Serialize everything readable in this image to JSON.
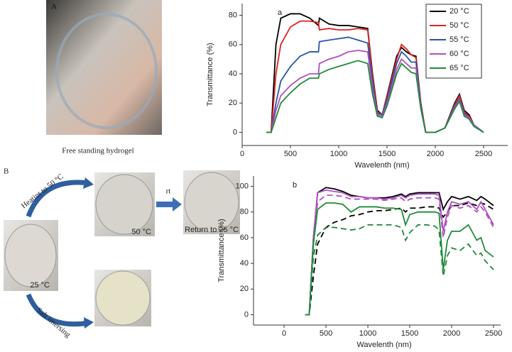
{
  "panels": {
    "a_letter": "A",
    "a_caption": "Free standing hydrogel",
    "b_letter": "B",
    "heat": "Heatint to 50 °C",
    "rt": "rt",
    "salt": "Salt imersing",
    "photo_50": "50 °C",
    "photo_return": "Return to 25 °C",
    "photo_25": "25 °C"
  },
  "chart_data": [
    {
      "type": "line",
      "panel_label": "a",
      "x_label": "Wavelenth (nm)",
      "y_label": "Transmittance (%)",
      "xlim": [
        0,
        2750
      ],
      "xticks": [
        0,
        500,
        1000,
        1500,
        2000,
        2500
      ],
      "ylim": [
        -9,
        88
      ],
      "yticks": [
        0,
        20,
        40,
        60,
        80
      ],
      "legend": "upper right",
      "x": [
        250,
        300,
        350,
        400,
        500,
        600,
        700,
        790,
        800,
        900,
        1000,
        1100,
        1200,
        1300,
        1350,
        1400,
        1450,
        1500,
        1600,
        1650,
        1700,
        1750,
        1800,
        1850,
        1900,
        2000,
        2100,
        2200,
        2250,
        2300,
        2350,
        2400,
        2500
      ],
      "series": [
        {
          "name": "20 °C",
          "color": "#000000",
          "values": [
            0,
            0,
            60,
            78,
            81,
            81,
            78,
            73,
            78,
            74,
            73,
            73,
            72,
            71,
            40,
            15,
            12,
            25,
            52,
            58,
            55,
            53,
            52,
            20,
            0,
            0,
            3,
            20,
            26,
            15,
            12,
            5,
            0
          ]
        },
        {
          "name": "50 °C",
          "color": "#e02020",
          "values": [
            0,
            0,
            40,
            60,
            72,
            76,
            76,
            75,
            70,
            71,
            70,
            70,
            71,
            70,
            38,
            14,
            12,
            24,
            50,
            60,
            57,
            53,
            51,
            19,
            0,
            0,
            3,
            19,
            25,
            14,
            11,
            5,
            0
          ]
        },
        {
          "name": "55 °C",
          "color": "#2855a8",
          "values": [
            0,
            0,
            20,
            35,
            45,
            52,
            55,
            55,
            62,
            63,
            64,
            65,
            63,
            61,
            34,
            13,
            12,
            22,
            47,
            55,
            52,
            48,
            48,
            18,
            0,
            0,
            3,
            18,
            23,
            13,
            10,
            5,
            0
          ]
        },
        {
          "name": "60 °C",
          "color": "#b050c0",
          "values": [
            0,
            0,
            15,
            25,
            32,
            37,
            40,
            40,
            47,
            50,
            52,
            55,
            56,
            55,
            30,
            12,
            11,
            20,
            43,
            50,
            47,
            44,
            44,
            17,
            0,
            0,
            3,
            17,
            22,
            12,
            10,
            5,
            0
          ]
        },
        {
          "name": "65 °C",
          "color": "#1f8a3a",
          "values": [
            0,
            0,
            10,
            20,
            27,
            33,
            37,
            37,
            40,
            43,
            45,
            47,
            49,
            47,
            26,
            11,
            10,
            18,
            40,
            47,
            44,
            41,
            40,
            16,
            0,
            0,
            3,
            16,
            21,
            11,
            9,
            4,
            0
          ]
        }
      ]
    },
    {
      "type": "line",
      "panel_label": "b",
      "x_label": "Wavelenth (nm)",
      "y_label": "Transmittance (%)",
      "xlim": [
        -365,
        2585
      ],
      "xticks": [
        0,
        500,
        1000,
        1500,
        2000,
        2500
      ],
      "ylim": [
        -8,
        108
      ],
      "yticks": [
        0,
        20,
        40,
        60,
        80,
        100
      ],
      "x": [
        250,
        300,
        350,
        400,
        500,
        600,
        700,
        800,
        900,
        1000,
        1100,
        1200,
        1300,
        1400,
        1450,
        1500,
        1600,
        1700,
        1800,
        1850,
        1900,
        1950,
        2000,
        2100,
        2200,
        2300,
        2350,
        2400,
        2500
      ],
      "series": [
        {
          "color": "#000000",
          "dash": false,
          "values": [
            0,
            0,
            60,
            95,
            99,
            98,
            96,
            93,
            92,
            91,
            91,
            91,
            92,
            94,
            92,
            94,
            95,
            95,
            95,
            95,
            82,
            88,
            92,
            90,
            92,
            89,
            92,
            90,
            85
          ]
        },
        {
          "color": "#000000",
          "dash": true,
          "values": [
            0,
            0,
            30,
            55,
            68,
            72,
            74,
            77,
            78,
            80,
            81,
            81,
            82,
            83,
            80,
            83,
            83,
            84,
            84,
            83,
            76,
            80,
            85,
            85,
            87,
            85,
            87,
            86,
            82
          ]
        },
        {
          "color": "#b050c0",
          "dash": false,
          "values": [
            0,
            0,
            60,
            95,
            97,
            96,
            95,
            92,
            92,
            91,
            91,
            90,
            91,
            93,
            91,
            93,
            94,
            94,
            94,
            93,
            65,
            80,
            88,
            86,
            88,
            82,
            88,
            82,
            70
          ]
        },
        {
          "color": "#b050c0",
          "dash": true,
          "values": [
            0,
            0,
            55,
            88,
            93,
            93,
            92,
            90,
            90,
            90,
            90,
            89,
            90,
            91,
            88,
            90,
            91,
            91,
            91,
            90,
            60,
            76,
            85,
            83,
            85,
            80,
            84,
            80,
            68
          ]
        },
        {
          "color": "#1f8a3a",
          "dash": false,
          "values": [
            0,
            0,
            55,
            82,
            87,
            87,
            86,
            80,
            84,
            84,
            84,
            83,
            83,
            82,
            70,
            78,
            80,
            80,
            80,
            79,
            35,
            58,
            65,
            65,
            70,
            58,
            60,
            50,
            45
          ]
        },
        {
          "color": "#1f8a3a",
          "dash": true,
          "values": [
            0,
            0,
            45,
            62,
            68,
            68,
            67,
            66,
            67,
            70,
            70,
            70,
            70,
            68,
            58,
            64,
            70,
            70,
            69,
            66,
            30,
            46,
            52,
            50,
            55,
            46,
            48,
            42,
            35
          ]
        }
      ]
    }
  ]
}
